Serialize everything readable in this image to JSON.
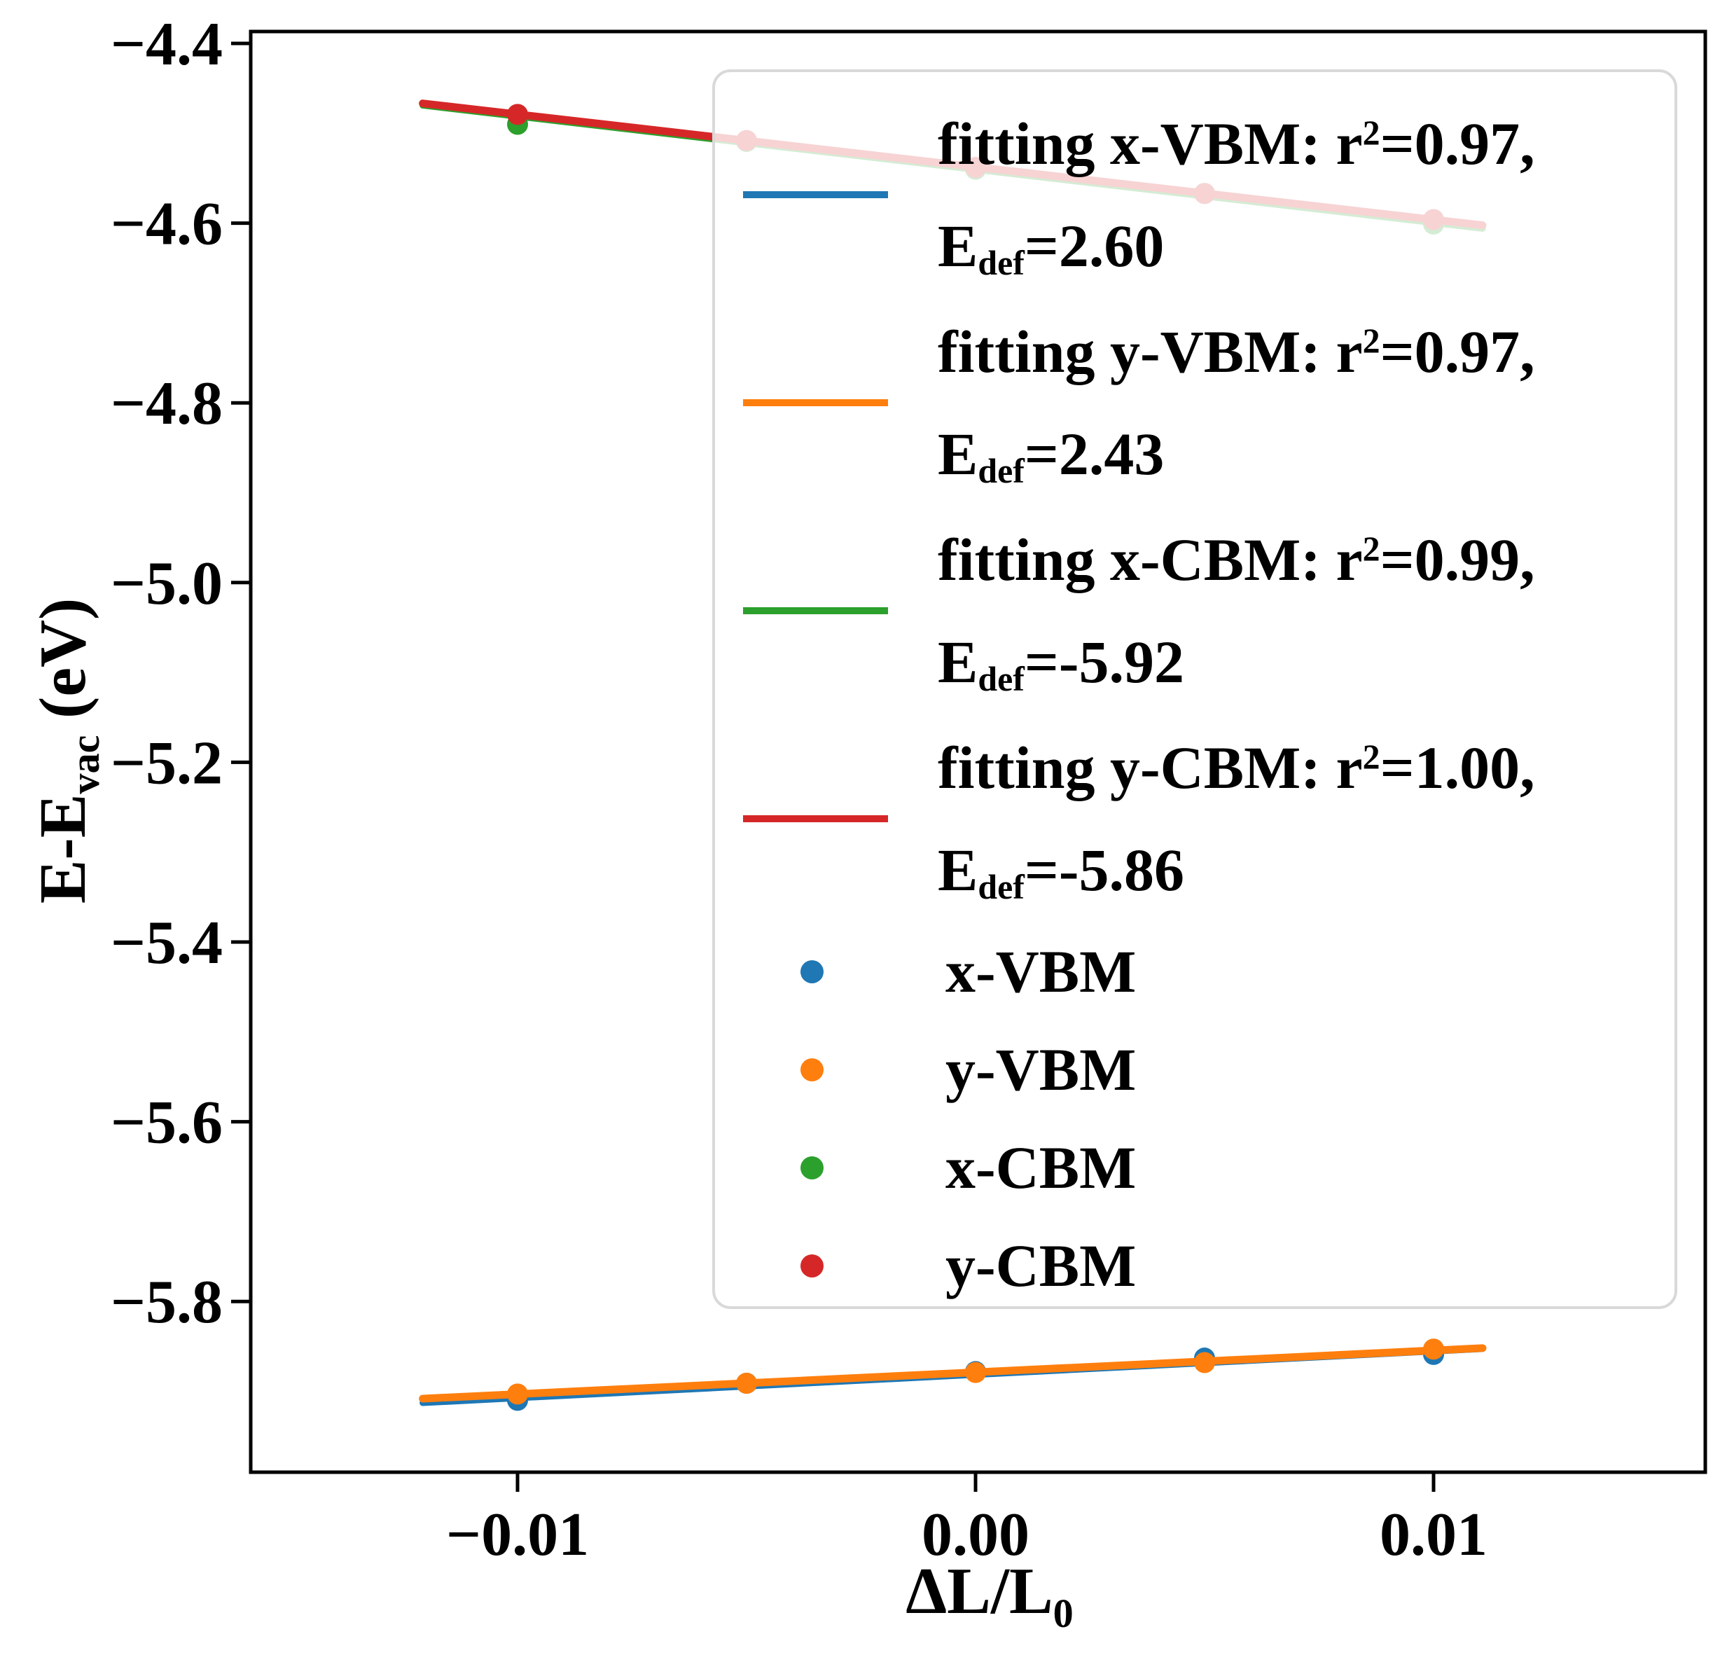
{
  "figure": {
    "background": "#ffffff"
  },
  "axes": {
    "ylabel": {
      "main": "E-E",
      "sub": "vac",
      "suffix": " (eV)"
    },
    "xlabel": {
      "main": "ΔL/L",
      "sub": "0"
    },
    "xlim": [
      -0.015826,
      0.015933
    ],
    "ylim": [
      -5.99,
      -4.38675
    ],
    "xticks": [
      {
        "value": -0.01,
        "label": "−0.01"
      },
      {
        "value": 0.0,
        "label": "0.00"
      },
      {
        "value": 0.01,
        "label": "0.01"
      }
    ],
    "yticks": [
      {
        "value": -4.4,
        "label": "−4.4"
      },
      {
        "value": -4.6,
        "label": "−4.6"
      },
      {
        "value": -4.8,
        "label": "−4.8"
      },
      {
        "value": -5.0,
        "label": "−5.0"
      },
      {
        "value": -5.2,
        "label": "−5.2"
      },
      {
        "value": -5.4,
        "label": "−5.4"
      },
      {
        "value": -5.6,
        "label": "−5.6"
      },
      {
        "value": -5.8,
        "label": "−5.8"
      }
    ]
  },
  "chart_data": {
    "type": "scatter",
    "title": "",
    "xlabel": "ΔL/L0",
    "ylabel": "E-Evac (eV)",
    "xlim": [
      -0.015826,
      0.015933
    ],
    "ylim": [
      -5.99,
      -4.38675
    ],
    "grid": false,
    "legend_position": "upper right",
    "x": [
      -0.01,
      -0.005,
      0.0,
      0.005,
      0.01
    ],
    "series": [
      {
        "name": "x-VBM",
        "type": "scatter",
        "color": "#1f77b4",
        "values": [
          -5.91,
          -5.891,
          -5.878,
          -5.863,
          -5.859
        ]
      },
      {
        "name": "y-VBM",
        "type": "scatter",
        "color": "#ff7f0e",
        "values": [
          -5.903,
          -5.891,
          -5.879,
          -5.868,
          -5.853
        ]
      },
      {
        "name": "x-CBM",
        "type": "scatter",
        "color": "#2ca02c",
        "values": [
          -4.49,
          -4.509,
          -4.54,
          -4.567,
          -4.601
        ]
      },
      {
        "name": "y-CBM",
        "type": "scatter",
        "color": "#d62728",
        "values": [
          -4.479,
          -4.508,
          -4.538,
          -4.567,
          -4.596
        ]
      }
    ],
    "fits": [
      {
        "name": "fitting x-VBM",
        "color": "#1f77b4",
        "slope": 2.6,
        "intercept": -5.8815,
        "r2": 0.97,
        "E_def": 2.6,
        "x_range": [
          -0.01207,
          0.01107
        ],
        "width": 9
      },
      {
        "name": "fitting y-VBM",
        "color": "#ff7f0e",
        "slope": 2.43,
        "intercept": -5.8788,
        "r2": 0.97,
        "E_def": 2.43,
        "x_range": [
          -0.01207,
          0.01107
        ],
        "width": 11
      },
      {
        "name": "fitting x-CBM",
        "color": "#2ca02c",
        "slope": -5.92,
        "intercept": -4.5405,
        "r2": 0.99,
        "E_def": -5.92,
        "x_range": [
          -0.01207,
          0.01107
        ],
        "width": 9
      },
      {
        "name": "fitting y-CBM",
        "color": "#d62728",
        "slope": -5.86,
        "intercept": -4.5375,
        "r2": 1.0,
        "E_def": -5.86,
        "x_range": [
          -0.01207,
          0.01107
        ],
        "width": 11
      }
    ],
    "marker_radius": 15
  },
  "legend": {
    "line_entries": [
      {
        "name": "fitting-x-VBM",
        "color": "#1f77b4",
        "pre": "fitting x-VBM: r",
        "sup": "2",
        "post": "=0.97,",
        "e_pre": "E",
        "e_sub": "def",
        "e_post": "=2.60"
      },
      {
        "name": "fitting-y-VBM",
        "color": "#ff7f0e",
        "pre": "fitting y-VBM: r",
        "sup": "2",
        "post": "=0.97,",
        "e_pre": "E",
        "e_sub": "def",
        "e_post": "=2.43"
      },
      {
        "name": "fitting-x-CBM",
        "color": "#2ca02c",
        "pre": "fitting x-CBM: r",
        "sup": "2",
        "post": "=0.99,",
        "e_pre": "E",
        "e_sub": "def",
        "e_post": "=-5.92"
      },
      {
        "name": "fitting-y-CBM",
        "color": "#d62728",
        "pre": "fitting y-CBM: r",
        "sup": "2",
        "post": "=1.00,",
        "e_pre": "E",
        "e_sub": "def",
        "e_post": "=-5.86"
      }
    ],
    "marker_entries": [
      {
        "name": "x-VBM",
        "label": "x-VBM",
        "color": "#1f77b4"
      },
      {
        "name": "y-VBM",
        "label": "y-VBM",
        "color": "#ff7f0e"
      },
      {
        "name": "x-CBM",
        "label": "x-CBM",
        "color": "#2ca02c"
      },
      {
        "name": "y-CBM",
        "label": "y-CBM",
        "color": "#d62728"
      }
    ]
  }
}
